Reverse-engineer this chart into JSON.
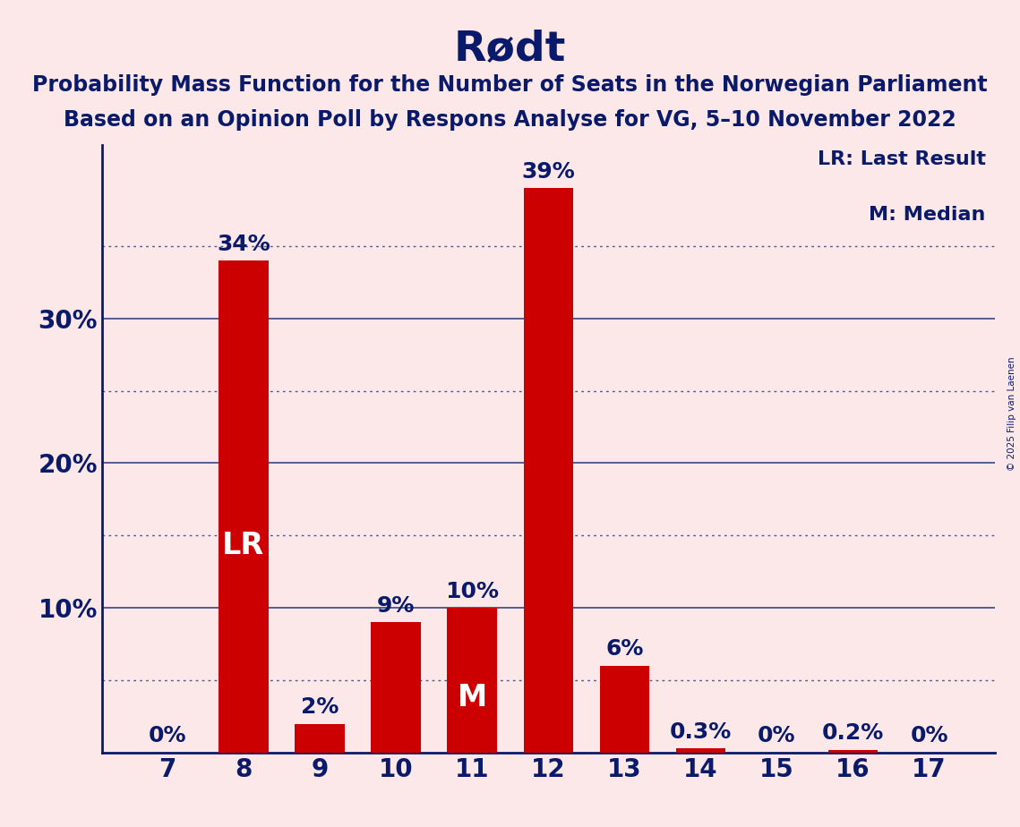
{
  "title": "Rødt",
  "subtitle1": "Probability Mass Function for the Number of Seats in the Norwegian Parliament",
  "subtitle2": "Based on an Opinion Poll by Respons Analyse for VG, 5–10 November 2022",
  "seats": [
    7,
    8,
    9,
    10,
    11,
    12,
    13,
    14,
    15,
    16,
    17
  ],
  "values": [
    0.0,
    34.0,
    2.0,
    9.0,
    10.0,
    39.0,
    6.0,
    0.3,
    0.0,
    0.2,
    0.0
  ],
  "bar_color": "#cc0000",
  "background_color": "#fce8e8",
  "text_color_dark": "#0a1a6b",
  "text_color_white": "#ffffff",
  "label_LR_index": 1,
  "label_M_index": 4,
  "label_LR": "LR",
  "label_M": "M",
  "legend_LR": "LR: Last Result",
  "legend_M": "M: Median",
  "ylim": [
    0,
    42
  ],
  "solid_gridlines": [
    10,
    20,
    30
  ],
  "dotted_gridlines": [
    5,
    15,
    25,
    35
  ],
  "ytick_positions": [
    10,
    20,
    30
  ],
  "ytick_labels": [
    "10%",
    "20%",
    "30%"
  ],
  "copyright": "© 2025 Filip van Laenen",
  "bar_label_fontsize": 18,
  "axis_tick_fontsize": 20,
  "title_fontsize": 34,
  "subtitle_fontsize": 17,
  "legend_fontsize": 16,
  "inner_label_fontsize": 24
}
